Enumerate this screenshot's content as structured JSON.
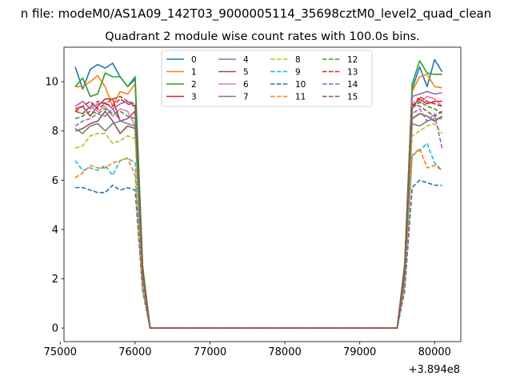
{
  "chart_data": {
    "type": "line",
    "suptitle": "n file: modeM0/AS1A09_142T03_9000005114_35698cztM0_level2_quad_clean",
    "title": "Quadrant 2 module wise count rates with 100.0s bins.",
    "xlabel": "",
    "ylabel": "",
    "x_offset_label": "+3.894e8",
    "xlim": [
      75050,
      80350
    ],
    "ylim": [
      -0.55,
      11.4
    ],
    "xticks": [
      75000,
      76000,
      77000,
      78000,
      79000,
      80000
    ],
    "xtick_labels": [
      "75000",
      "76000",
      "77000",
      "78000",
      "79000",
      "80000"
    ],
    "yticks": [
      0,
      2,
      4,
      6,
      8,
      10
    ],
    "ytick_labels": [
      "0",
      "2",
      "4",
      "6",
      "8",
      "10"
    ],
    "grid": false,
    "legend": {
      "position": "top-center",
      "columns": 4
    },
    "x": [
      75200,
      75300,
      75400,
      75500,
      75600,
      75700,
      75800,
      75900,
      76000,
      76100,
      76200,
      76300,
      76400,
      76500,
      76600,
      76700,
      76800,
      76900,
      77000,
      77100,
      77200,
      77300,
      77400,
      77500,
      77600,
      77700,
      77800,
      77900,
      78000,
      78100,
      78200,
      78300,
      78400,
      78500,
      78600,
      78700,
      78800,
      78900,
      79000,
      79100,
      79200,
      79300,
      79400,
      79500,
      79600,
      79700,
      79800,
      79900,
      80000,
      80100
    ],
    "zero_gap_from": 11,
    "zero_gap_to": 42,
    "series": [
      {
        "name": "0",
        "color": "#1f77b4",
        "dash": "solid",
        "before": [
          10.6,
          9.7,
          10.5,
          10.7,
          10.55,
          10.75,
          10.2,
          9.8,
          10.1,
          2.5,
          0
        ],
        "after": [
          0,
          2.6,
          9.7,
          10.6,
          9.8,
          10.9,
          10.4,
          10.3
        ]
      },
      {
        "name": "1",
        "color": "#ff7f0e",
        "dash": "solid",
        "before": [
          9.8,
          9.8,
          10.0,
          10.25,
          9.8,
          9.0,
          9.6,
          9.5,
          9.9,
          2.5,
          0
        ],
        "after": [
          0,
          2.5,
          9.6,
          10.2,
          10.3,
          9.8,
          9.75,
          9.7
        ]
      },
      {
        "name": "2",
        "color": "#2ca02c",
        "dash": "solid",
        "before": [
          9.8,
          10.15,
          9.4,
          9.5,
          10.35,
          10.2,
          10.2,
          9.8,
          10.2,
          2.5,
          0
        ],
        "after": [
          0,
          2.5,
          9.9,
          10.85,
          10.35,
          10.3,
          10.3,
          10.2
        ]
      },
      {
        "name": "3",
        "color": "#d62728",
        "dash": "solid",
        "before": [
          8.9,
          9.0,
          8.6,
          9.0,
          9.3,
          9.3,
          8.4,
          8.5,
          8.8,
          2.2,
          0
        ],
        "after": [
          0,
          2.3,
          9.0,
          9.3,
          9.1,
          9.2,
          9.2,
          9.1
        ]
      },
      {
        "name": "4",
        "color": "#9467bd",
        "dash": "solid",
        "before": [
          9.0,
          9.2,
          8.9,
          9.1,
          9.15,
          8.9,
          9.1,
          9.2,
          9.0,
          2.3,
          0
        ],
        "after": [
          0,
          2.3,
          9.4,
          9.5,
          9.6,
          9.5,
          9.55,
          9.3
        ]
      },
      {
        "name": "5",
        "color": "#8c564b",
        "dash": "solid",
        "before": [
          8.0,
          8.1,
          8.3,
          8.4,
          8.8,
          8.4,
          7.9,
          8.2,
          8.1,
          2.1,
          0
        ],
        "after": [
          0,
          2.2,
          8.5,
          8.7,
          8.6,
          8.4,
          8.6,
          8.2
        ]
      },
      {
        "name": "6",
        "color": "#e377c2",
        "dash": "solid",
        "before": [
          8.8,
          8.7,
          9.0,
          8.8,
          9.0,
          8.6,
          8.9,
          8.8,
          8.2,
          2.2,
          0
        ],
        "after": [
          0,
          2.2,
          9.2,
          9.1,
          9.4,
          9.3,
          9.0,
          8.8
        ]
      },
      {
        "name": "7",
        "color": "#7f7f7f",
        "dash": "solid",
        "before": [
          8.1,
          7.9,
          8.2,
          8.3,
          8.0,
          8.3,
          8.4,
          8.3,
          8.2,
          2.1,
          0
        ],
        "after": [
          0,
          2.1,
          8.3,
          8.2,
          8.4,
          8.5,
          8.5,
          8.3
        ]
      },
      {
        "name": "8",
        "color": "#bcbd22",
        "dash": "dashed",
        "before": [
          7.3,
          7.4,
          7.8,
          7.9,
          7.9,
          7.5,
          7.6,
          7.8,
          7.7,
          2.0,
          0
        ],
        "after": [
          0,
          2.0,
          7.8,
          8.0,
          8.2,
          8.3,
          7.9,
          7.3
        ]
      },
      {
        "name": "9",
        "color": "#17becf",
        "dash": "dashed",
        "before": [
          6.8,
          6.4,
          6.5,
          6.4,
          6.6,
          6.2,
          6.8,
          6.9,
          6.7,
          1.8,
          0
        ],
        "after": [
          0,
          1.8,
          7.0,
          7.2,
          7.5,
          6.7,
          6.4,
          6.1
        ]
      },
      {
        "name": "10",
        "color": "#1f77b4",
        "dash": "dashed",
        "before": [
          5.7,
          5.7,
          5.6,
          5.5,
          5.5,
          5.8,
          5.6,
          5.7,
          5.6,
          1.5,
          0
        ],
        "after": [
          0,
          1.5,
          5.7,
          6.0,
          5.9,
          5.8,
          5.8,
          5.8
        ]
      },
      {
        "name": "11",
        "color": "#ff7f0e",
        "dash": "dashed",
        "before": [
          6.1,
          6.3,
          6.6,
          6.5,
          6.5,
          6.7,
          6.8,
          6.9,
          6.2,
          1.6,
          0
        ],
        "after": [
          0,
          1.7,
          7.0,
          7.3,
          6.5,
          6.6,
          6.4,
          6.2
        ]
      },
      {
        "name": "12",
        "color": "#2ca02c",
        "dash": "dashed",
        "before": [
          8.5,
          8.6,
          8.8,
          8.7,
          8.9,
          8.7,
          8.8,
          8.6,
          8.5,
          2.2,
          0
        ],
        "after": [
          0,
          2.2,
          8.9,
          9.2,
          9.0,
          8.9,
          8.7,
          8.6
        ]
      },
      {
        "name": "13",
        "color": "#d62728",
        "dash": "dashed",
        "before": [
          8.8,
          9.0,
          9.2,
          8.9,
          9.1,
          9.0,
          9.3,
          9.1,
          9.0,
          2.3,
          0
        ],
        "after": [
          0,
          2.3,
          8.9,
          9.4,
          9.2,
          9.1,
          9.0,
          9.2
        ]
      },
      {
        "name": "14",
        "color": "#9467bd",
        "dash": "dashed",
        "before": [
          8.2,
          8.4,
          8.5,
          8.7,
          8.6,
          8.9,
          8.4,
          8.5,
          8.8,
          2.2,
          0
        ],
        "after": [
          0,
          2.2,
          8.7,
          8.9,
          8.4,
          8.7,
          7.3,
          7.8
        ]
      },
      {
        "name": "15",
        "color": "#8c564b",
        "dash": "dashed",
        "before": [
          8.8,
          8.7,
          9.0,
          9.2,
          9.1,
          9.3,
          9.4,
          9.2,
          9.1,
          2.3,
          0
        ],
        "after": [
          0,
          2.3,
          9.1,
          9.0,
          8.8,
          8.6,
          8.8,
          8.3
        ]
      }
    ]
  }
}
